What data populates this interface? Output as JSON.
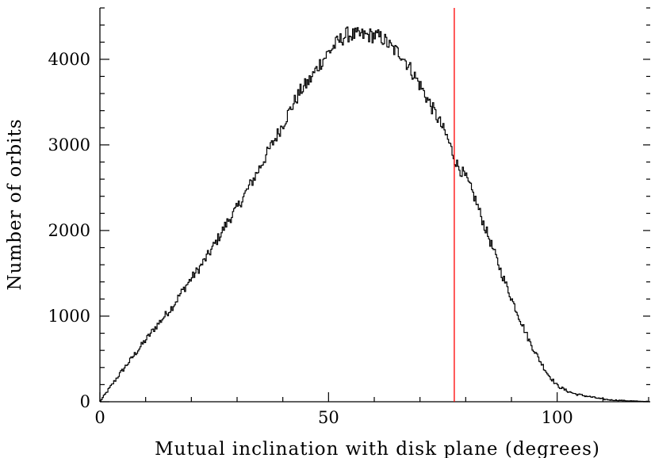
{
  "chart_data": {
    "type": "line",
    "style": "histogram-step",
    "xlabel": "Mutual inclination with disk plane (degrees)",
    "ylabel": "Number of orbits",
    "xlim": [
      0,
      120
    ],
    "ylim": [
      0,
      4600
    ],
    "x_ticks": [
      0,
      50,
      100
    ],
    "y_ticks": [
      0,
      1000,
      2000,
      3000,
      4000
    ],
    "grid": false,
    "vline": {
      "x": 77.5,
      "color": "#ff0000"
    },
    "series": [
      {
        "color": "#000000",
        "x": [
          0,
          2,
          4,
          6,
          8,
          10,
          12,
          14,
          16,
          18,
          20,
          22,
          24,
          26,
          28,
          30,
          32,
          34,
          36,
          38,
          40,
          42,
          44,
          46,
          48,
          50,
          52,
          54,
          56,
          58,
          60,
          62,
          64,
          66,
          68,
          70,
          72,
          74,
          76,
          78,
          80,
          82,
          84,
          86,
          88,
          90,
          92,
          94,
          96,
          98,
          100,
          102,
          104,
          106,
          108,
          110,
          112,
          114,
          116,
          118,
          120
        ],
        "y": [
          0,
          150,
          300,
          440,
          580,
          720,
          860,
          990,
          1120,
          1290,
          1440,
          1580,
          1740,
          1920,
          2110,
          2260,
          2450,
          2640,
          2840,
          3040,
          3240,
          3450,
          3640,
          3760,
          3940,
          4080,
          4200,
          4290,
          4280,
          4280,
          4280,
          4240,
          4120,
          4060,
          3880,
          3700,
          3500,
          3300,
          3080,
          2780,
          2620,
          2380,
          2070,
          1780,
          1480,
          1210,
          950,
          700,
          500,
          320,
          190,
          130,
          90,
          70,
          50,
          30,
          20,
          15,
          10,
          5,
          3
        ]
      }
    ]
  }
}
